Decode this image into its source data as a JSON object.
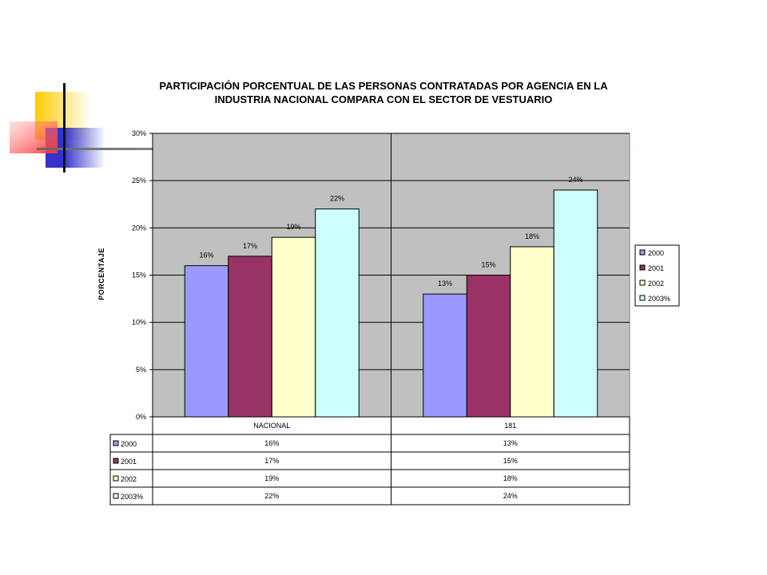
{
  "colors": {
    "plot_bg": "#c0c0c0",
    "series": [
      "#9999ff",
      "#993366",
      "#ffffcc",
      "#ccffff"
    ],
    "deco_yellow": "#ffcc00",
    "deco_blue": "#3333cc",
    "deco_red": "#ff3333"
  },
  "chart_data": {
    "type": "bar",
    "title_line1": "PARTICIPACIÓN PORCENTUAL DE LAS PERSONAS CONTRATADAS POR AGENCIA EN LA",
    "title_line2": "INDUSTRIA NACIONAL COMPARA CON EL SECTOR DE VESTUARIO",
    "ylabel": "PORCENTAJE",
    "xlabel": "",
    "categories": [
      "NACIONAL",
      "181"
    ],
    "ylim": [
      0,
      30
    ],
    "yticks": [
      0,
      5,
      10,
      15,
      20,
      25,
      30
    ],
    "ytick_labels": [
      "0%",
      "5%",
      "10%",
      "15%",
      "20%",
      "25%",
      "30%"
    ],
    "grid": true,
    "legend_position": "right",
    "series": [
      {
        "name": "2000",
        "values": [
          16,
          13
        ],
        "labels": [
          "16%",
          "13%"
        ]
      },
      {
        "name": "2001",
        "values": [
          17,
          15
        ],
        "labels": [
          "17%",
          "15%"
        ]
      },
      {
        "name": "2002",
        "values": [
          19,
          18
        ],
        "labels": [
          "19%",
          "18%"
        ]
      },
      {
        "name": "2003%",
        "values": [
          22,
          24
        ],
        "labels": [
          "22%",
          "24%"
        ]
      }
    ]
  }
}
